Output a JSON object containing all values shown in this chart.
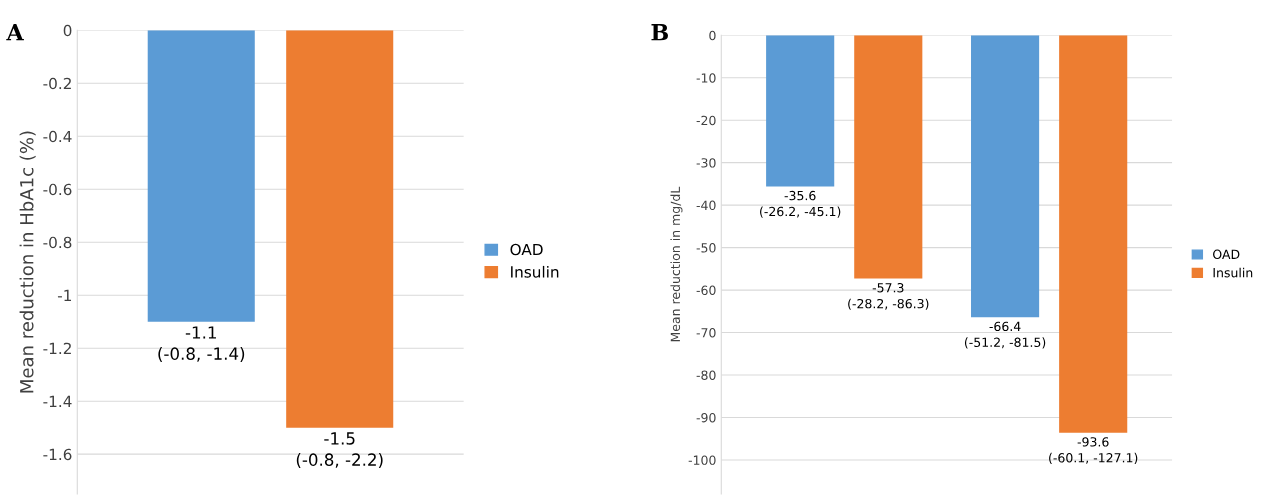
{
  "chart_data": [
    {
      "type": "bar",
      "title": "A",
      "ylabel": "Mean reduction in HbA1c (%)",
      "categories": [
        null
      ],
      "series": [
        {
          "name": "OAD",
          "color": "#5b9bd5",
          "values": [
            -1.1
          ],
          "value_labels": [
            "-1.1\n(-0.8, -1.4)"
          ]
        },
        {
          "name": "Insulin",
          "color": "#ed7d31",
          "values": [
            -1.5
          ],
          "value_labels": [
            "-1.5\n(-0.8, -2.2)"
          ]
        }
      ],
      "ylim": [
        -1.75,
        0
      ],
      "yticks": [
        0,
        -0.2,
        -0.4,
        -0.6,
        -0.8,
        -1,
        -1.2,
        -1.4,
        -1.6
      ],
      "grid": "y",
      "legend": "right"
    },
    {
      "type": "bar",
      "title": "B",
      "ylabel": "Mean reduction in mg/dL",
      "categories": [
        null,
        null
      ],
      "series": [
        {
          "name": "OAD",
          "color": "#5b9bd5",
          "values": [
            -35.6,
            -66.4
          ],
          "value_labels": [
            "-35.6\n(-26.2, -45.1)",
            "-66.4\n(-51.2, -81.5)"
          ]
        },
        {
          "name": "Insulin",
          "color": "#ed7d31",
          "values": [
            -57.3,
            -93.6
          ],
          "value_labels": [
            "-57.3\n(-28.2, -86.3)",
            "-93.6\n(-60.1, -127.1)"
          ]
        }
      ],
      "ylim": [
        -108,
        0
      ],
      "yticks": [
        0,
        -10,
        -20,
        -30,
        -40,
        -50,
        -60,
        -70,
        -80,
        -90,
        -100
      ],
      "grid": "y",
      "legend": "right"
    }
  ]
}
